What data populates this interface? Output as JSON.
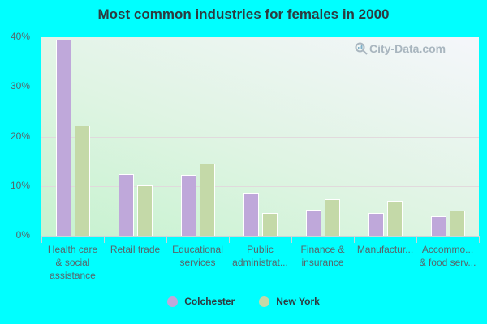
{
  "chart_data": {
    "type": "bar",
    "title": "Most common industries for females in 2000",
    "xlabel": "",
    "ylabel": "",
    "ylim": [
      0,
      40
    ],
    "yticks": [
      "0%",
      "10%",
      "20%",
      "30%",
      "40%"
    ],
    "grid": true,
    "legend_position": "bottom",
    "categories": [
      "Health care\n& social\nassistance",
      "Retail trade",
      "Educational\nservices",
      "Public\nadministrat...",
      "Finance &\ninsurance",
      "Manufactur...",
      "Accommo...\n& food serv..."
    ],
    "series": [
      {
        "name": "Colchester",
        "color": "#bfa8da",
        "values": [
          39.5,
          12.4,
          12.2,
          8.6,
          5.2,
          4.5,
          4.0
        ]
      },
      {
        "name": "New York",
        "color": "#c4d9a8",
        "values": [
          22.2,
          10.2,
          14.6,
          4.5,
          7.3,
          7.1,
          5.0
        ]
      }
    ]
  },
  "watermark": "City-Data.com",
  "colors": {
    "background": "#00ffff",
    "title": "#2e3a3f",
    "axis_text": "#56666b"
  }
}
